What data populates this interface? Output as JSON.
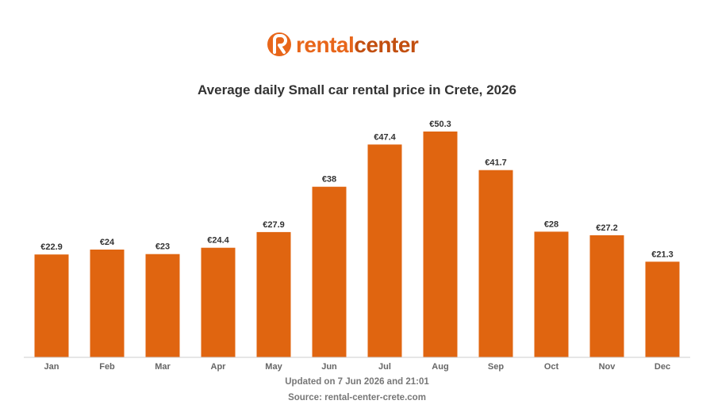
{
  "logo": {
    "text_primary": "rental",
    "text_secondary": "center",
    "color_primary": "#e8661a",
    "color_secondary": "#c24f10"
  },
  "footer": {
    "updated": "Updated on 7 Jun 2026 and 21:01",
    "source": "Source: rental-center-crete.com"
  },
  "colors": {
    "bar": "#e06510",
    "axis": "#cccccc",
    "value_label": "#333333",
    "tick_label": "#666666"
  },
  "chart_data": {
    "type": "bar",
    "title": "Average daily Small car rental price in Crete, 2026",
    "xlabel": "",
    "ylabel": "",
    "categories": [
      "Jan",
      "Feb",
      "Mar",
      "Apr",
      "May",
      "Jun",
      "Jul",
      "Aug",
      "Sep",
      "Oct",
      "Nov",
      "Dec"
    ],
    "values": [
      22.9,
      24,
      23,
      24.4,
      27.9,
      38,
      47.4,
      50.3,
      41.7,
      28,
      27.2,
      21.3
    ],
    "value_labels": [
      "€22.9",
      "€24",
      "€23",
      "€24.4",
      "€27.9",
      "€38",
      "€47.4",
      "€50.3",
      "€41.7",
      "€28",
      "€27.2",
      "€21.3"
    ],
    "ylim": [
      0,
      50.3
    ],
    "grid": false,
    "legend": "none"
  }
}
